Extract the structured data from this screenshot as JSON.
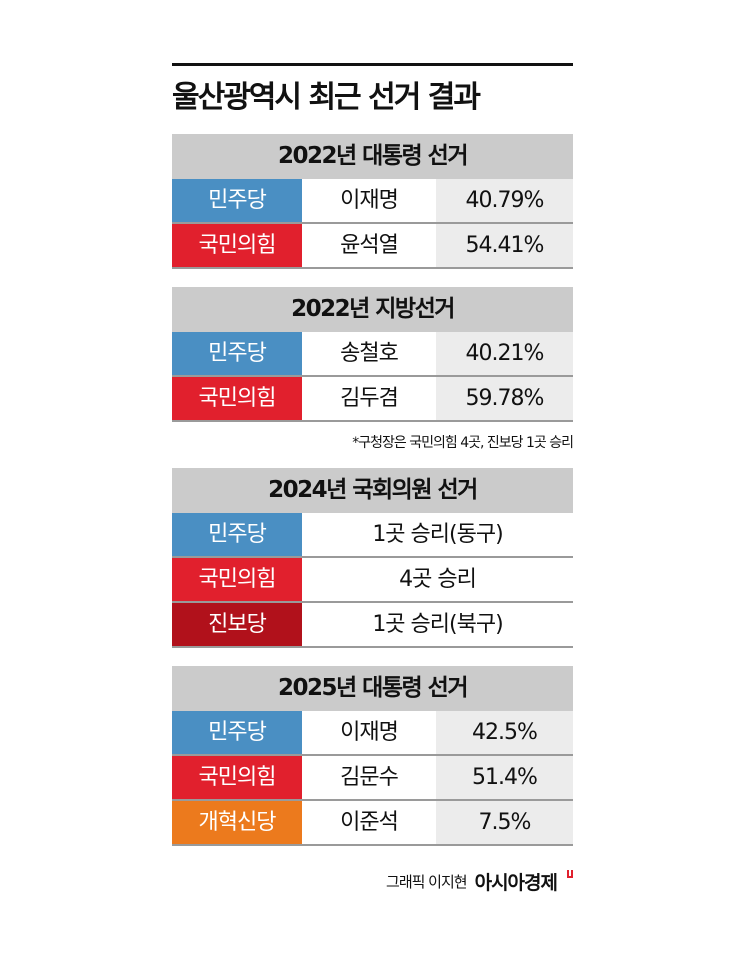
{
  "title": "울산광역시 최근 선거 결과",
  "colors": {
    "민주당": "#4a8fc3",
    "국민의힘": "#e1202d",
    "진보당": "#b1111b",
    "개혁신당": "#ec7a1d",
    "header": "#cbcbcb",
    "value_bg": "#ececec"
  },
  "sections": [
    {
      "header": "2022년 대통령 선거",
      "rows": [
        {
          "party": "민주당",
          "candidate": "이재명",
          "value": "40.79%"
        },
        {
          "party": "국민의힘",
          "candidate": "윤석열",
          "value": "54.41%"
        }
      ]
    },
    {
      "header": "2022년 지방선거",
      "rows": [
        {
          "party": "민주당",
          "candidate": "송철호",
          "value": "40.21%"
        },
        {
          "party": "국민의힘",
          "candidate": "김두겸",
          "value": "59.78%"
        }
      ],
      "note": "*구청장은 국민의힘 4곳, 진보당 1곳 승리"
    },
    {
      "header": "2024년 국회의원 선거",
      "rows": [
        {
          "party": "민주당",
          "result": "1곳 승리(동구)"
        },
        {
          "party": "국민의힘",
          "result": "4곳 승리"
        },
        {
          "party": "진보당",
          "result": "1곳 승리(북구)"
        }
      ]
    },
    {
      "header": "2025년 대통령 선거",
      "rows": [
        {
          "party": "민주당",
          "candidate": "이재명",
          "value": "42.5%"
        },
        {
          "party": "국민의힘",
          "candidate": "김문수",
          "value": "51.4%"
        },
        {
          "party": "개혁신당",
          "candidate": "이준석",
          "value": "7.5%"
        }
      ]
    }
  ],
  "credit": {
    "text": "그래픽 이지현",
    "brand": "아시아경제"
  }
}
